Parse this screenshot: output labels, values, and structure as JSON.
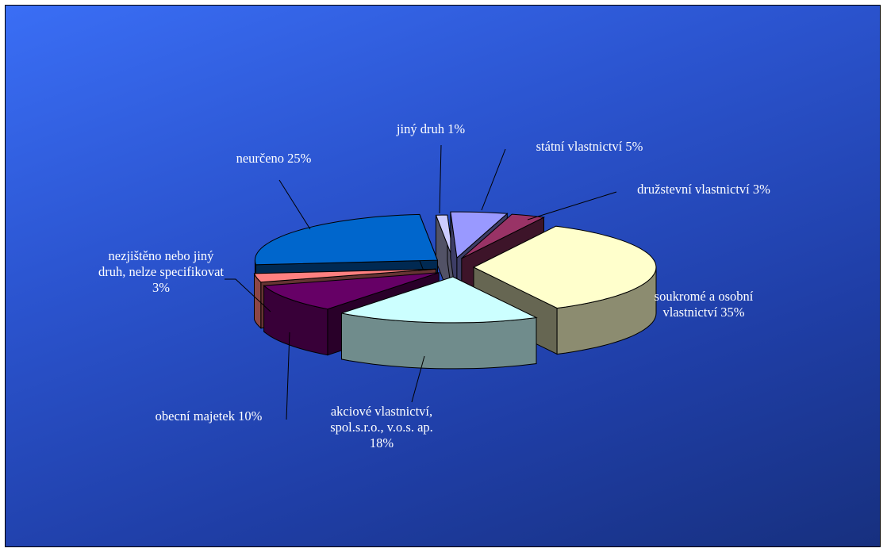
{
  "chart_data": {
    "type": "pie",
    "three_d": true,
    "title": "",
    "slices": [
      {
        "label_lines": [
          "státní vlastnictví 5%"
        ],
        "label": "státní vlastnictví",
        "value": 5,
        "color": "#9999ff"
      },
      {
        "label_lines": [
          "družstevní vlastnictví 3%"
        ],
        "label": "družstevní vlastnictví",
        "value": 3,
        "color": "#993366"
      },
      {
        "label_lines": [
          "soukromé a osobní",
          "vlastnictví 35%"
        ],
        "label": "soukromé a osobní vlastnictví",
        "value": 35,
        "color": "#ffffcc"
      },
      {
        "label_lines": [
          "akciové vlastnictví,",
          "spol.s.r.o., v.o.s. ap.",
          "18%"
        ],
        "label": "akciové vlastnictví, spol.s.r.o., v.o.s. ap.",
        "value": 18,
        "color": "#ccffff"
      },
      {
        "label_lines": [
          "obecní majetek 10%"
        ],
        "label": "obecní majetek",
        "value": 10,
        "color": "#660066"
      },
      {
        "label_lines": [
          "nezjištěno nebo jiný",
          "druh, nelze specifikovat",
          "3%"
        ],
        "label": "nezjištěno nebo jiný druh, nelze specifikovat",
        "value": 3,
        "color": "#ff8080"
      },
      {
        "label_lines": [
          "neurčeno 25%"
        ],
        "label": "neurčeno",
        "value": 25,
        "color": "#0066cc"
      },
      {
        "label_lines": [
          "jiný druh 1%"
        ],
        "label": "jiný druh",
        "value": 1,
        "color": "#ccccff"
      }
    ]
  }
}
